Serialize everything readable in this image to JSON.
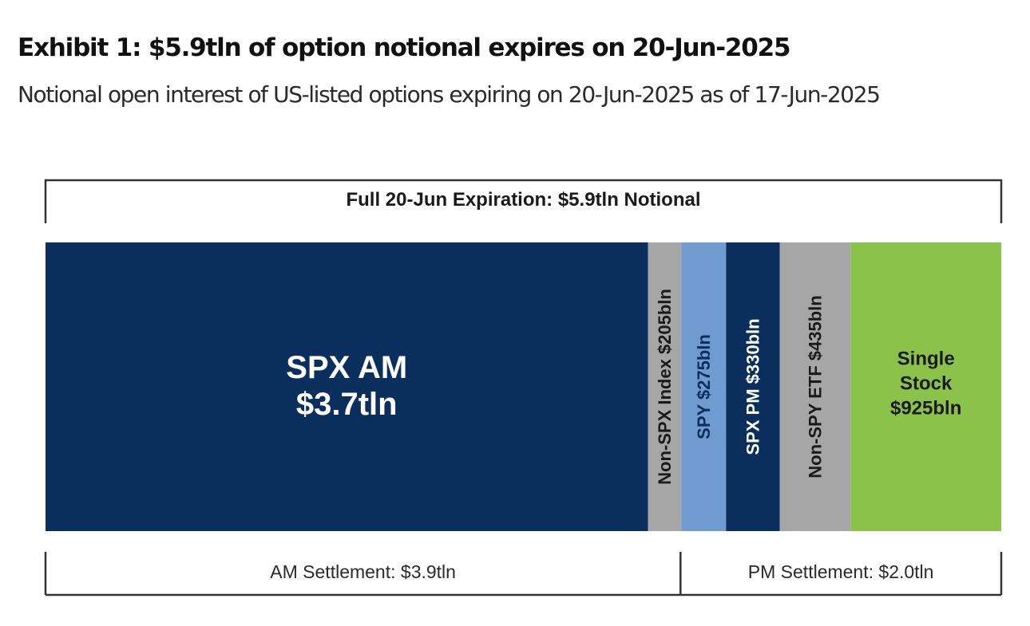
{
  "title": "Exhibit 1: $5.9tln of option notional expires on 20-Jun-2025",
  "subtitle": "Notional open interest of US-listed options expiring on 20-Jun-2025 as of 17-Jun-2025",
  "chart_data": {
    "type": "bar",
    "stacked": true,
    "orientation": "horizontal",
    "unit": "USD bln",
    "total": {
      "label": "Full 20-Jun Expiration: $5.9tln Notional",
      "value": 5900
    },
    "segments": [
      {
        "name": "SPX AM",
        "value_label": "$3.7tln",
        "value": 3700,
        "color": "#0b2f5c",
        "text_color": "#ffffff",
        "orientation": "horizontal"
      },
      {
        "name": "Non-SPX Index",
        "value_label": "$205bln",
        "value": 205,
        "color": "#a6a6a6",
        "text_color": "#1a1a1a",
        "orientation": "vertical"
      },
      {
        "name": "SPY",
        "value_label": "$275bln",
        "value": 275,
        "color": "#6f9bd0",
        "text_color": "#0b2f5c",
        "orientation": "vertical"
      },
      {
        "name": "SPX PM",
        "value_label": "$330bln",
        "value": 330,
        "color": "#0b2f5c",
        "text_color": "#ffffff",
        "orientation": "vertical"
      },
      {
        "name": "Non-SPY ETF",
        "value_label": "$435bln",
        "value": 435,
        "color": "#a6a6a6",
        "text_color": "#1a1a1a",
        "orientation": "vertical"
      },
      {
        "name": "Single Stock",
        "value_label": "$925bln",
        "value": 925,
        "color": "#8bc34a",
        "text_color": "#1a1a1a",
        "orientation": "horizontal"
      }
    ],
    "groups": [
      {
        "label": "AM Settlement: $3.9tln",
        "value": 3900
      },
      {
        "label": "PM Settlement: $2.0tln",
        "value": 2000
      }
    ]
  }
}
